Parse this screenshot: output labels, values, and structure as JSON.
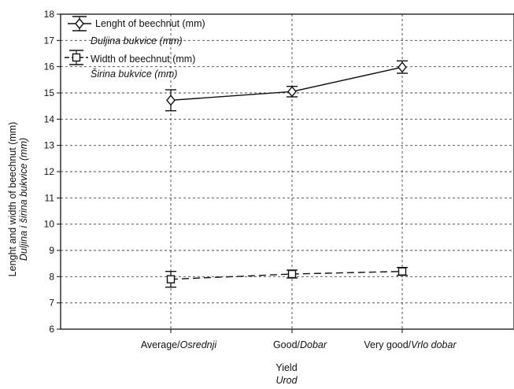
{
  "chart_data": {
    "type": "line",
    "categories": [
      "Average/Osrednji",
      "Good/Dobar",
      "Very good/Vrlo dobar"
    ],
    "category_labels": [
      {
        "main": "Average/",
        "italic": "Osrednji"
      },
      {
        "main": "Good/",
        "italic": "Dobar"
      },
      {
        "main": "Very good/",
        "italic": "Vrlo dobar"
      }
    ],
    "series": [
      {
        "name": "Lenght of beechnut (mm)",
        "name_sub": "Duljina bukvice (mm)",
        "marker": "diamond",
        "line": "solid",
        "values": [
          14.72,
          15.05,
          15.98
        ],
        "error_low": [
          14.32,
          14.85,
          15.75
        ],
        "error_high": [
          15.12,
          15.25,
          16.22
        ]
      },
      {
        "name": "Width of beechnut (mm)",
        "name_sub": "Širina bukvice (mm)",
        "marker": "square",
        "line": "dashed",
        "values": [
          7.9,
          8.1,
          8.2
        ],
        "error_low": [
          7.6,
          7.95,
          8.05
        ],
        "error_high": [
          8.2,
          8.25,
          8.35
        ]
      }
    ],
    "ylim": [
      6,
      18
    ],
    "yticks": [
      6,
      7,
      8,
      9,
      10,
      11,
      12,
      13,
      14,
      15,
      16,
      17,
      18
    ],
    "xlabel": "Yield",
    "xlabel_sub": "Urod",
    "ylabel": "Lenght and width of beechnut (mm)",
    "ylabel_sub": "Duljina i širina bukvice (mm)",
    "grid": true,
    "legend_position": "top-left"
  }
}
